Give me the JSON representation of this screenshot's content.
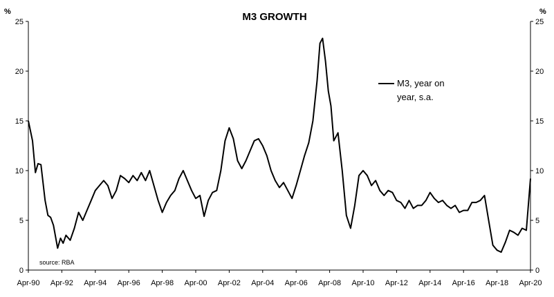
{
  "chart_data": {
    "type": "line",
    "title": "M3 GROWTH",
    "unit_left": "%",
    "unit_right": "%",
    "source": "source: RBA",
    "ylim": [
      0,
      25
    ],
    "yticks": [
      0,
      5,
      10,
      15,
      20,
      25
    ],
    "x_range": [
      1990.25,
      2020.25
    ],
    "xticks": [
      {
        "label": "Apr-90",
        "x": 1990.25
      },
      {
        "label": "Apr-92",
        "x": 1992.25
      },
      {
        "label": "Apr-94",
        "x": 1994.25
      },
      {
        "label": "Apr-96",
        "x": 1996.25
      },
      {
        "label": "Apr-98",
        "x": 1998.25
      },
      {
        "label": "Apr-00",
        "x": 2000.25
      },
      {
        "label": "Apr-02",
        "x": 2002.25
      },
      {
        "label": "Apr-04",
        "x": 2004.25
      },
      {
        "label": "Apr-06",
        "x": 2006.25
      },
      {
        "label": "Apr-08",
        "x": 2008.25
      },
      {
        "label": "Apr-10",
        "x": 2010.25
      },
      {
        "label": "Apr-12",
        "x": 2012.25
      },
      {
        "label": "Apr-14",
        "x": 2014.25
      },
      {
        "label": "Apr-16",
        "x": 2016.25
      },
      {
        "label": "Apr-18",
        "x": 2018.25
      },
      {
        "label": "Apr-20",
        "x": 2020.25
      }
    ],
    "legend_position": "upper-right",
    "grid": false,
    "series": [
      {
        "name": "M3, year on year, s.a.",
        "color": "#000000",
        "x": [
          1990.25,
          1990.5,
          1990.67,
          1990.83,
          1991.0,
          1991.25,
          1991.42,
          1991.58,
          1991.75,
          1992.0,
          1992.17,
          1992.33,
          1992.5,
          1992.75,
          1993.0,
          1993.25,
          1993.5,
          1993.75,
          1994.0,
          1994.25,
          1994.5,
          1994.75,
          1995.0,
          1995.25,
          1995.5,
          1995.75,
          1996.0,
          1996.25,
          1996.5,
          1996.75,
          1997.0,
          1997.25,
          1997.5,
          1997.75,
          1998.0,
          1998.25,
          1998.5,
          1998.75,
          1999.0,
          1999.25,
          1999.5,
          1999.75,
          2000.0,
          2000.25,
          2000.5,
          2000.75,
          2001.0,
          2001.25,
          2001.5,
          2001.75,
          2002.0,
          2002.25,
          2002.5,
          2002.75,
          2003.0,
          2003.25,
          2003.5,
          2003.75,
          2004.0,
          2004.25,
          2004.5,
          2004.75,
          2005.0,
          2005.25,
          2005.5,
          2005.75,
          2006.0,
          2006.25,
          2006.5,
          2006.75,
          2007.0,
          2007.25,
          2007.5,
          2007.67,
          2007.83,
          2008.0,
          2008.17,
          2008.33,
          2008.5,
          2008.75,
          2009.0,
          2009.25,
          2009.5,
          2009.75,
          2010.0,
          2010.25,
          2010.5,
          2010.75,
          2011.0,
          2011.25,
          2011.5,
          2011.75,
          2012.0,
          2012.25,
          2012.5,
          2012.75,
          2013.0,
          2013.25,
          2013.5,
          2013.75,
          2014.0,
          2014.25,
          2014.5,
          2014.75,
          2015.0,
          2015.25,
          2015.5,
          2015.75,
          2016.0,
          2016.25,
          2016.5,
          2016.75,
          2017.0,
          2017.25,
          2017.5,
          2017.75,
          2018.0,
          2018.25,
          2018.5,
          2018.75,
          2019.0,
          2019.25,
          2019.5,
          2019.75,
          2020.0,
          2020.25
        ],
        "values": [
          15.0,
          13.0,
          9.8,
          10.7,
          10.6,
          7.0,
          5.5,
          5.3,
          4.5,
          2.2,
          3.2,
          2.7,
          3.5,
          3.0,
          4.2,
          5.8,
          5.0,
          6.0,
          7.0,
          8.0,
          8.5,
          9.0,
          8.5,
          7.2,
          8.0,
          9.5,
          9.2,
          8.8,
          9.5,
          9.0,
          9.8,
          9.0,
          10.0,
          8.5,
          7.0,
          5.8,
          6.8,
          7.5,
          8.0,
          9.2,
          10.0,
          9.0,
          8.0,
          7.2,
          7.5,
          5.4,
          7.0,
          7.8,
          8.0,
          10.0,
          13.0,
          14.3,
          13.2,
          11.0,
          10.2,
          11.0,
          12.0,
          13.0,
          13.2,
          12.5,
          11.5,
          10.0,
          9.0,
          8.3,
          8.8,
          8.0,
          7.2,
          8.5,
          10.0,
          11.5,
          12.8,
          15.0,
          19.0,
          22.8,
          23.3,
          21.0,
          18.0,
          16.5,
          13.0,
          13.8,
          10.0,
          5.5,
          4.2,
          6.5,
          9.5,
          10.0,
          9.5,
          8.5,
          9.0,
          8.0,
          7.5,
          8.0,
          7.8,
          7.0,
          6.8,
          6.2,
          7.0,
          6.2,
          6.5,
          6.5,
          7.0,
          7.8,
          7.2,
          6.8,
          7.0,
          6.5,
          6.2,
          6.5,
          5.8,
          6.0,
          6.0,
          6.8,
          6.8,
          7.0,
          7.5,
          5.0,
          2.5,
          2.0,
          1.8,
          2.8,
          4.0,
          3.8,
          3.5,
          4.2,
          4.0,
          9.2
        ]
      }
    ]
  }
}
